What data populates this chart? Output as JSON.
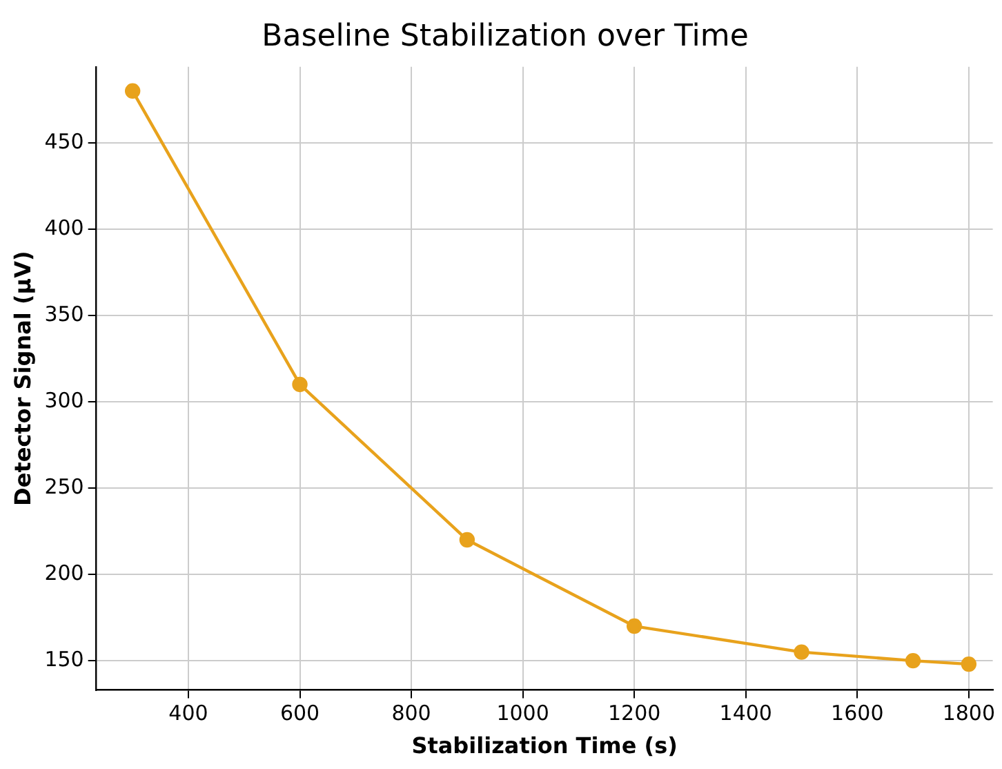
{
  "chart_data": {
    "type": "line",
    "title": "Baseline Stabilization over Time",
    "xlabel": "Stabilization Time (s)",
    "ylabel": "Detector Signal (µV)",
    "x": [
      300,
      600,
      900,
      1200,
      1500,
      1700,
      1800
    ],
    "series": [
      {
        "color": "#e8a21c",
        "values": [
          480,
          310,
          220,
          170,
          155,
          150,
          148
        ]
      }
    ],
    "xlim": [
      235,
      1843
    ],
    "xticks": [
      400,
      600,
      800,
      1000,
      1200,
      1400,
      1600,
      1800
    ],
    "ylim": [
      133,
      494
    ],
    "yticks": [
      150,
      200,
      250,
      300,
      350,
      400,
      450
    ],
    "grid": true,
    "marker": "circle",
    "line_style": "solid",
    "legend": false
  }
}
